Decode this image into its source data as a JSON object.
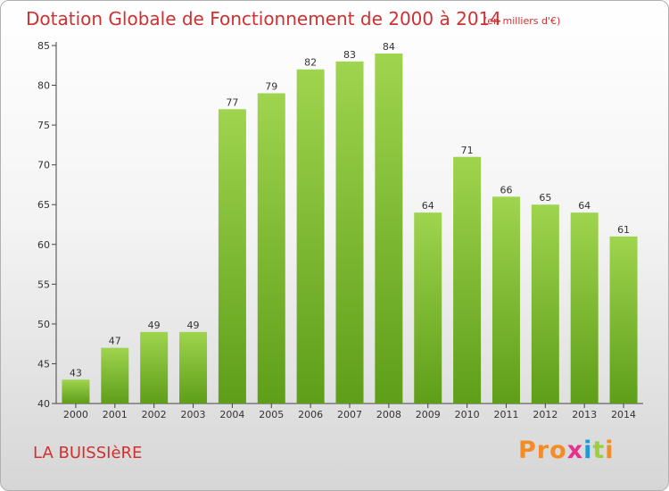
{
  "header": {
    "title": "Dotation Globale de Fonctionnement de 2000 à 2014",
    "unit": "(en milliers d'€)"
  },
  "footer": {
    "town": "LA BUISSIèRE",
    "logo_text": "Proxiti",
    "logo_colors": [
      "#f28c28",
      "#f28c28",
      "#f28c28",
      "#e8308c",
      "#1e9ad6",
      "#9ccf3c",
      "#f28c28"
    ]
  },
  "colors": {
    "bar_light": "#9fd44e",
    "bar_dark": "#5e9e19",
    "title": "#d03030"
  },
  "chart_data": {
    "type": "bar",
    "title": "Dotation Globale de Fonctionnement de 2000 à 2014",
    "subtitle": "(en milliers d'€)",
    "xlabel": "",
    "ylabel": "",
    "categories": [
      "2000",
      "2001",
      "2002",
      "2003",
      "2004",
      "2005",
      "2006",
      "2007",
      "2008",
      "2009",
      "2010",
      "2011",
      "2012",
      "2013",
      "2014"
    ],
    "values": [
      43,
      47,
      49,
      49,
      77,
      79,
      82,
      83,
      84,
      64,
      71,
      66,
      65,
      64,
      61
    ],
    "ylim": [
      40,
      85
    ],
    "yticks": [
      40,
      45,
      50,
      55,
      60,
      65,
      70,
      75,
      80,
      85
    ],
    "grid": false,
    "legend": "none"
  }
}
